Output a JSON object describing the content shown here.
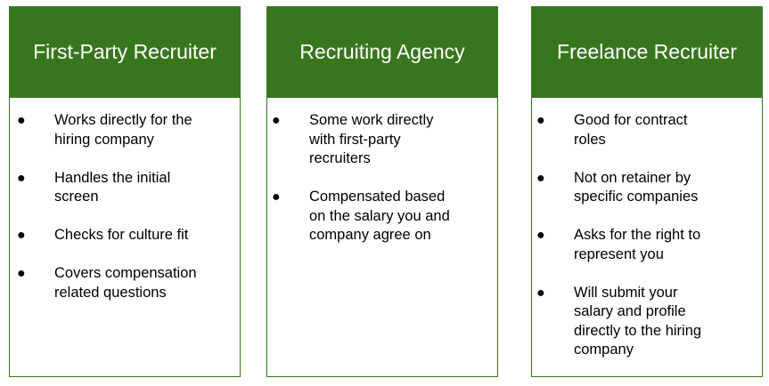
{
  "colors": {
    "header_bg": "#38761d",
    "header_text": "#ffffff",
    "border": "#38761d"
  },
  "cards": [
    {
      "title": "First-Party Recruiter",
      "items": [
        "Works directly for the hiring company",
        "Handles the initial screen",
        "Checks for culture fit",
        "Covers compensation related questions"
      ]
    },
    {
      "title": "Recruiting Agency",
      "items": [
        "Some work directly with first-party recruiters",
        "Compensated based on the salary you and company agree on"
      ]
    },
    {
      "title": "Freelance Recruiter",
      "items": [
        "Good for contract roles",
        "Not on retainer by specific companies",
        "Asks for the right to represent you",
        "Will submit your salary and profile directly to the hiring company"
      ]
    }
  ],
  "bullet_char": "●"
}
